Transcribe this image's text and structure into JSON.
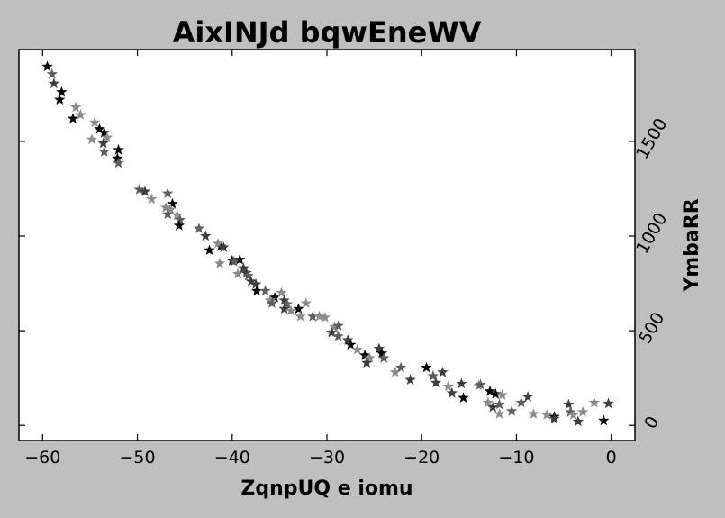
{
  "chart_data": {
    "type": "scatter",
    "title": "AixINJd bqwEneWV",
    "xlabel": "ZqnpUQ e iomu",
    "ylabel": "YmbaRR",
    "xlim": [
      -62.5,
      2.5
    ],
    "ylim": [
      -80,
      1985
    ],
    "x_ticks": [
      -60,
      -50,
      -40,
      -30,
      -20,
      -10,
      0
    ],
    "y_ticks": [
      0,
      500,
      1000,
      1500
    ],
    "y_axis_side": "right",
    "grid": false,
    "legend": "none",
    "marker": "star",
    "shade_colors": [
      "#000000",
      "#3d3d3d",
      "#5e5e5e",
      "#8c8c8c"
    ],
    "points": [
      [
        -59.5,
        1895,
        0
      ],
      [
        -59.0,
        1855,
        2
      ],
      [
        -58.8,
        1805,
        1
      ],
      [
        -58.0,
        1760,
        0
      ],
      [
        -58.2,
        1720,
        0
      ],
      [
        -56.5,
        1680,
        3
      ],
      [
        -56.8,
        1620,
        0
      ],
      [
        -56.0,
        1640,
        3
      ],
      [
        -54.5,
        1600,
        3
      ],
      [
        -54.0,
        1565,
        0
      ],
      [
        -53.5,
        1545,
        0
      ],
      [
        -53.2,
        1520,
        3
      ],
      [
        -53.6,
        1490,
        1
      ],
      [
        -54.8,
        1510,
        3
      ],
      [
        -53.5,
        1445,
        2
      ],
      [
        -52.0,
        1455,
        0
      ],
      [
        -52.1,
        1410,
        0
      ],
      [
        -52.0,
        1385,
        2
      ],
      [
        -49.8,
        1245,
        2
      ],
      [
        -49.2,
        1235,
        1
      ],
      [
        -48.5,
        1195,
        3
      ],
      [
        -46.8,
        1225,
        2
      ],
      [
        -46.3,
        1170,
        0
      ],
      [
        -47.0,
        1150,
        3
      ],
      [
        -46.5,
        1140,
        3
      ],
      [
        -46.8,
        1115,
        2
      ],
      [
        -45.8,
        1110,
        3
      ],
      [
        -45.5,
        1085,
        2
      ],
      [
        -45.6,
        1055,
        0
      ],
      [
        -43.5,
        1040,
        2
      ],
      [
        -42.8,
        1000,
        1
      ],
      [
        -42.4,
        925,
        0
      ],
      [
        -41.2,
        945,
        0
      ],
      [
        -41.5,
        960,
        3
      ],
      [
        -40.9,
        940,
        1
      ],
      [
        -40.0,
        870,
        0
      ],
      [
        -39.2,
        875,
        0
      ],
      [
        -39.8,
        865,
        2
      ],
      [
        -41.3,
        855,
        3
      ],
      [
        -39.4,
        800,
        3
      ],
      [
        -38.8,
        830,
        1
      ],
      [
        -38.5,
        805,
        1
      ],
      [
        -38.3,
        790,
        2
      ],
      [
        -38.0,
        760,
        1
      ],
      [
        -37.5,
        745,
        1
      ],
      [
        -37.4,
        710,
        0
      ],
      [
        -36.5,
        710,
        2
      ],
      [
        -35.5,
        675,
        0
      ],
      [
        -36.0,
        660,
        3
      ],
      [
        -35.8,
        645,
        2
      ],
      [
        -34.8,
        700,
        3
      ],
      [
        -34.5,
        660,
        1
      ],
      [
        -34.2,
        640,
        2
      ],
      [
        -34.5,
        615,
        1
      ],
      [
        -33.8,
        605,
        3
      ],
      [
        -33.0,
        615,
        0
      ],
      [
        -32.8,
        575,
        3
      ],
      [
        -32.2,
        645,
        3
      ],
      [
        -31.5,
        575,
        2
      ],
      [
        -30.8,
        575,
        3
      ],
      [
        -30.2,
        570,
        3
      ],
      [
        -29.2,
        520,
        3
      ],
      [
        -28.8,
        525,
        2
      ],
      [
        -29.5,
        490,
        1
      ],
      [
        -28.8,
        470,
        2
      ],
      [
        -27.8,
        450,
        1
      ],
      [
        -27.5,
        425,
        0
      ],
      [
        -26.8,
        400,
        3
      ],
      [
        -26.0,
        370,
        0
      ],
      [
        -25.5,
        355,
        3
      ],
      [
        -25.8,
        330,
        1
      ],
      [
        -24.5,
        405,
        1
      ],
      [
        -24.2,
        380,
        0
      ],
      [
        -24.0,
        355,
        2
      ],
      [
        -22.8,
        280,
        3
      ],
      [
        -22.2,
        305,
        2
      ],
      [
        -21.2,
        240,
        1
      ],
      [
        -19.5,
        305,
        0
      ],
      [
        -18.8,
        260,
        2
      ],
      [
        -18.5,
        225,
        1
      ],
      [
        -17.8,
        280,
        1
      ],
      [
        -17.2,
        205,
        3
      ],
      [
        -16.8,
        170,
        1
      ],
      [
        -15.8,
        220,
        1
      ],
      [
        -15.6,
        145,
        0
      ],
      [
        -14.0,
        210,
        3
      ],
      [
        -13.8,
        215,
        2
      ],
      [
        -13.0,
        120,
        3
      ],
      [
        -12.8,
        180,
        0
      ],
      [
        -12.2,
        165,
        0
      ],
      [
        -12.5,
        95,
        1
      ],
      [
        -11.8,
        110,
        2
      ],
      [
        -11.5,
        160,
        3
      ],
      [
        -11.8,
        60,
        3
      ],
      [
        -10.5,
        75,
        2
      ],
      [
        -9.5,
        120,
        2
      ],
      [
        -8.8,
        150,
        1
      ],
      [
        -8.2,
        60,
        3
      ],
      [
        -6.8,
        55,
        3
      ],
      [
        -6.0,
        45,
        0
      ],
      [
        -6.0,
        35,
        1
      ],
      [
        -4.5,
        110,
        1
      ],
      [
        -4.3,
        70,
        2
      ],
      [
        -4.0,
        55,
        3
      ],
      [
        -3.5,
        20,
        1
      ],
      [
        -3.0,
        70,
        3
      ],
      [
        -1.8,
        120,
        3
      ],
      [
        -0.8,
        25,
        0
      ],
      [
        -0.3,
        115,
        1
      ]
    ]
  }
}
